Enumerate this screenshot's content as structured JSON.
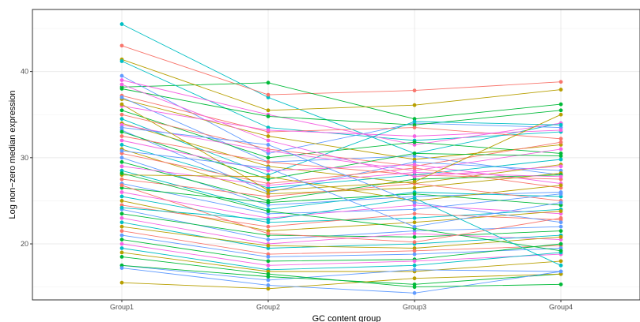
{
  "chart_data": {
    "type": "line",
    "title": "",
    "xlabel": "GC content group",
    "ylabel": "Log non−zero median expression",
    "categories": [
      "Group1",
      "Group2",
      "Group3",
      "Group4"
    ],
    "y_ticks": [
      20,
      30,
      40
    ],
    "ylim": [
      13.5,
      47.2
    ],
    "grid": true,
    "legend": "none",
    "background": "#ffffff",
    "grid_color": "#ebebeb",
    "series": [
      {
        "color": "#00BFC4",
        "values": [
          45.5,
          37.0,
          30.5,
          34.0
        ]
      },
      {
        "color": "#F8766D",
        "values": [
          43.0,
          37.3,
          37.8,
          38.8
        ]
      },
      {
        "color": "#00BA38",
        "values": [
          38.2,
          38.7,
          34.5,
          36.2
        ]
      },
      {
        "color": "#B79F00",
        "values": [
          41.4,
          35.5,
          36.1,
          37.9
        ]
      },
      {
        "color": "#00BFC4",
        "values": [
          41.2,
          33.5,
          32.0,
          33.0
        ]
      },
      {
        "color": "#619CFF",
        "values": [
          39.5,
          30.5,
          34.0,
          33.5
        ]
      },
      {
        "color": "#F564E3",
        "values": [
          39.0,
          35.0,
          31.5,
          34.0
        ]
      },
      {
        "color": "#00BA38",
        "values": [
          38.0,
          34.8,
          33.8,
          35.5
        ]
      },
      {
        "color": "#F8766D",
        "values": [
          37.2,
          33.0,
          33.5,
          32.2
        ]
      },
      {
        "color": "#B79F00",
        "values": [
          36.8,
          32.5,
          29.8,
          31.5
        ]
      },
      {
        "color": "#619CFF",
        "values": [
          37.0,
          29.5,
          30.2,
          28.0
        ]
      },
      {
        "color": "#F564E3",
        "values": [
          36.0,
          33.2,
          32.5,
          33.2
        ]
      },
      {
        "color": "#00BA38",
        "values": [
          35.5,
          30.0,
          31.8,
          30.5
        ]
      },
      {
        "color": "#F8766D",
        "values": [
          35.0,
          31.0,
          29.0,
          31.8
        ]
      },
      {
        "color": "#00BFC4",
        "values": [
          34.5,
          28.0,
          34.2,
          33.8
        ]
      },
      {
        "color": "#B79F00",
        "values": [
          34.0,
          29.0,
          27.0,
          29.2
        ]
      },
      {
        "color": "#F564E3",
        "values": [
          33.8,
          30.8,
          28.5,
          31.0
        ]
      },
      {
        "color": "#619CFF",
        "values": [
          33.2,
          26.0,
          29.5,
          28.5
        ]
      },
      {
        "color": "#00BA38",
        "values": [
          33.0,
          27.5,
          30.5,
          30.2
        ]
      },
      {
        "color": "#F8766D",
        "values": [
          32.5,
          29.5,
          28.0,
          27.5
        ]
      },
      {
        "color": "#F564E3",
        "values": [
          32.0,
          28.5,
          29.2,
          27.0
        ]
      },
      {
        "color": "#00BFC4",
        "values": [
          31.5,
          26.5,
          28.0,
          29.8
        ]
      },
      {
        "color": "#B79F00",
        "values": [
          31.0,
          25.8,
          26.5,
          28.2
        ]
      },
      {
        "color": "#F8766D",
        "values": [
          30.5,
          27.0,
          28.8,
          26.5
        ]
      },
      {
        "color": "#619CFF",
        "values": [
          30.0,
          24.5,
          25.5,
          26.0
        ]
      },
      {
        "color": "#00BA38",
        "values": [
          29.5,
          25.0,
          27.5,
          28.0
        ]
      },
      {
        "color": "#F564E3",
        "values": [
          29.0,
          26.8,
          28.3,
          27.8
        ]
      },
      {
        "color": "#00BFC4",
        "values": [
          28.5,
          24.0,
          26.0,
          25.5
        ]
      },
      {
        "color": "#B79F00",
        "values": [
          28.0,
          27.8,
          25.0,
          26.8
        ]
      },
      {
        "color": "#F8766D",
        "values": [
          27.5,
          25.5,
          27.0,
          25.0
        ]
      },
      {
        "color": "#619CFF",
        "values": [
          27.0,
          23.5,
          24.0,
          25.8
        ]
      },
      {
        "color": "#00BA38",
        "values": [
          26.5,
          24.8,
          25.8,
          24.5
        ]
      },
      {
        "color": "#F564E3",
        "values": [
          26.0,
          23.0,
          24.5,
          23.5
        ]
      },
      {
        "color": "#00BFC4",
        "values": [
          25.5,
          22.5,
          23.0,
          24.0
        ]
      },
      {
        "color": "#B79F00",
        "values": [
          25.0,
          21.5,
          22.5,
          23.8
        ]
      },
      {
        "color": "#F8766D",
        "values": [
          24.5,
          22.0,
          23.5,
          22.8
        ]
      },
      {
        "color": "#619CFF",
        "values": [
          24.0,
          20.5,
          21.5,
          22.0
        ]
      },
      {
        "color": "#00BA38",
        "values": [
          23.5,
          21.0,
          20.8,
          21.5
        ]
      },
      {
        "color": "#F564E3",
        "values": [
          23.0,
          20.0,
          21.2,
          20.5
        ]
      },
      {
        "color": "#00BFC4",
        "values": [
          22.5,
          19.5,
          20.0,
          21.0
        ]
      },
      {
        "color": "#B79F00",
        "values": [
          22.0,
          19.8,
          19.5,
          20.8
        ]
      },
      {
        "color": "#F8766D",
        "values": [
          21.5,
          18.8,
          19.2,
          19.8
        ]
      },
      {
        "color": "#619CFF",
        "values": [
          21.0,
          18.5,
          18.8,
          19.5
        ]
      },
      {
        "color": "#00BA38",
        "values": [
          20.5,
          18.0,
          18.2,
          20.0
        ]
      },
      {
        "color": "#F564E3",
        "values": [
          20.0,
          17.5,
          18.0,
          18.8
        ]
      },
      {
        "color": "#00BFC4",
        "values": [
          19.5,
          17.0,
          17.5,
          19.0
        ]
      },
      {
        "color": "#B79F00",
        "values": [
          19.0,
          16.8,
          16.8,
          18.0
        ]
      },
      {
        "color": "#619CFF",
        "values": [
          17.5,
          15.8,
          17.0,
          16.8
        ]
      },
      {
        "color": "#00BA38",
        "values": [
          17.5,
          16.2,
          15.3,
          16.5
        ]
      },
      {
        "color": "#B79F00",
        "values": [
          15.5,
          14.8,
          16.0,
          16.5
        ]
      },
      {
        "color": "#619CFF",
        "values": [
          17.2,
          15.2,
          14.3,
          16.8
        ]
      },
      {
        "color": "#00BA38",
        "values": [
          18.5,
          16.5,
          15.0,
          15.3
        ]
      },
      {
        "color": "#F564E3",
        "values": [
          38.5,
          32.0,
          27.8,
          29.0
        ]
      },
      {
        "color": "#619CFF",
        "values": [
          33.5,
          31.5,
          24.8,
          22.5
        ]
      },
      {
        "color": "#00BA38",
        "values": [
          28.2,
          23.8,
          21.8,
          19.2
        ]
      },
      {
        "color": "#F8766D",
        "values": [
          26.8,
          21.2,
          20.2,
          23.0
        ]
      },
      {
        "color": "#00BFC4",
        "values": [
          24.2,
          22.8,
          25.3,
          17.5
        ]
      },
      {
        "color": "#B79F00",
        "values": [
          36.2,
          26.2,
          27.2,
          35.0
        ]
      },
      {
        "color": "#619CFF",
        "values": [
          30.8,
          28.8,
          22.0,
          24.8
        ]
      }
    ]
  }
}
